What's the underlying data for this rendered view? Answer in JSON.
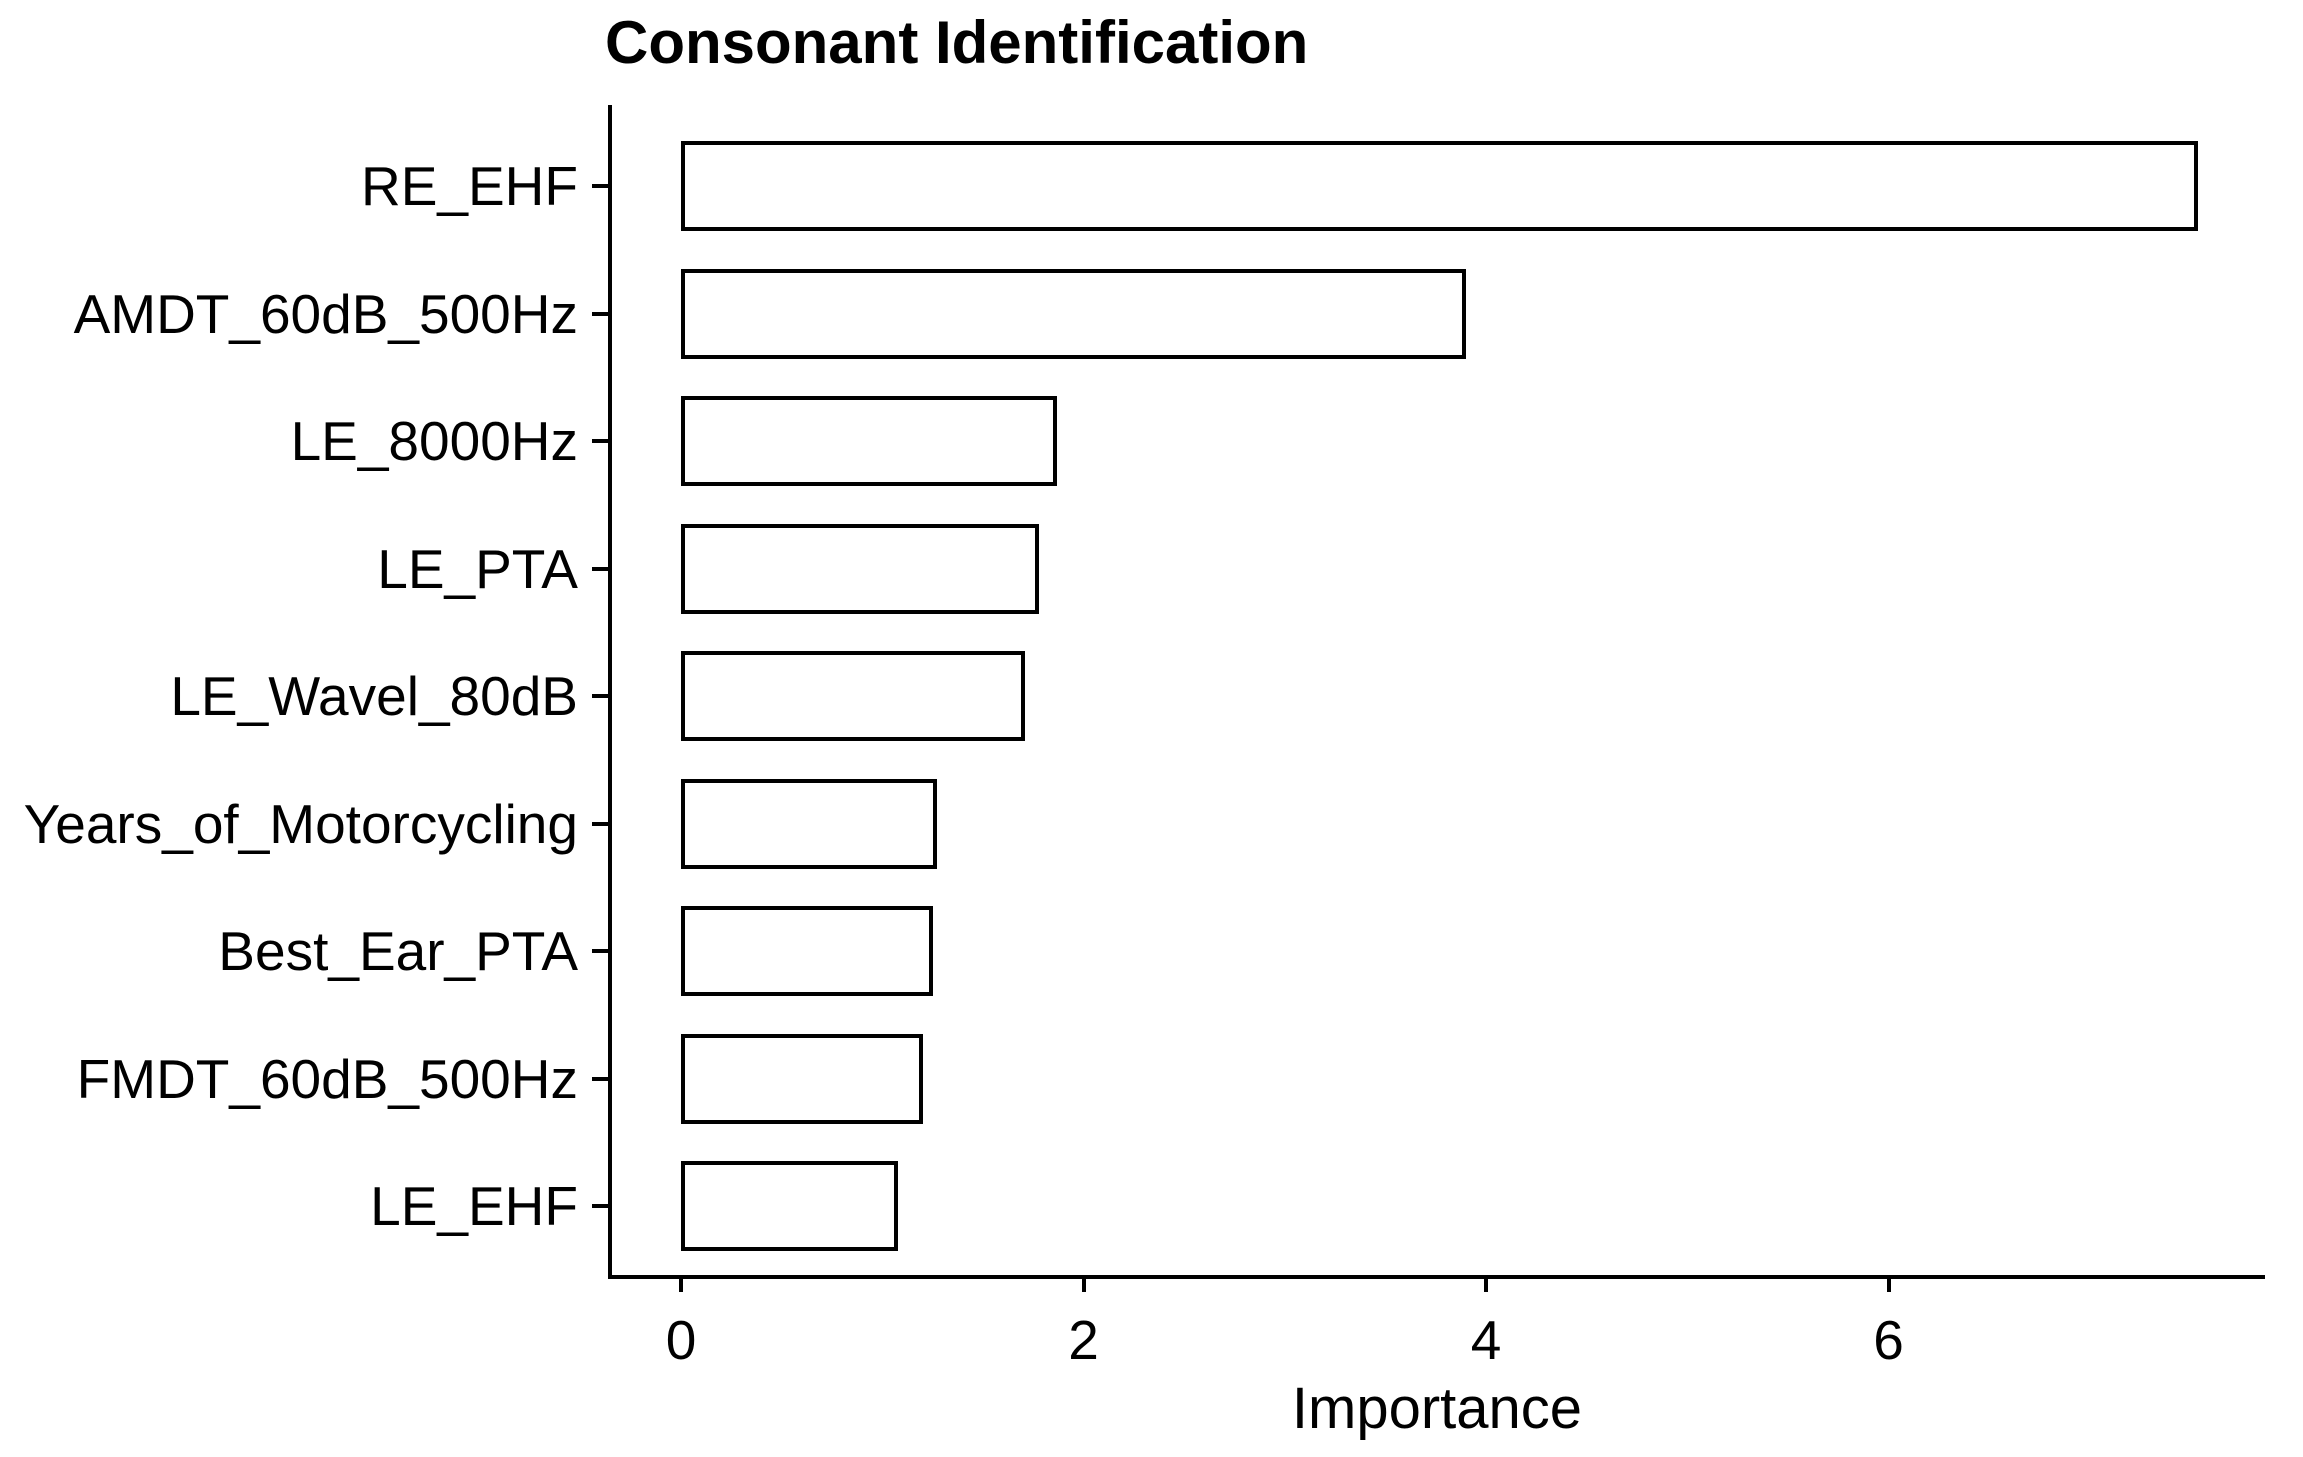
{
  "title": "Consonant Identification",
  "x_axis_label": "Importance",
  "chart_data": {
    "type": "bar",
    "orientation": "horizontal",
    "title": "Consonant Identification",
    "xlabel": "Importance",
    "ylabel": "",
    "categories": [
      "RE_EHF",
      "AMDT_60dB_500Hz",
      "LE_8000Hz",
      "LE_PTA",
      "LE_Wavel_80dB",
      "Years_of_Motorcycling",
      "Best_Ear_PTA",
      "FMDT_60dB_500Hz",
      "LE_EHF"
    ],
    "values": [
      7.54,
      3.9,
      1.87,
      1.78,
      1.71,
      1.27,
      1.25,
      1.2,
      1.08
    ],
    "x_ticks": [
      0,
      2,
      4,
      6
    ],
    "xlim": [
      0,
      7.87
    ],
    "grid": false,
    "legend": false,
    "bar_fill": "#ffffff",
    "bar_stroke": "#000000",
    "axis_color": "#000000",
    "text_color": "#000000",
    "background": "#ffffff"
  }
}
